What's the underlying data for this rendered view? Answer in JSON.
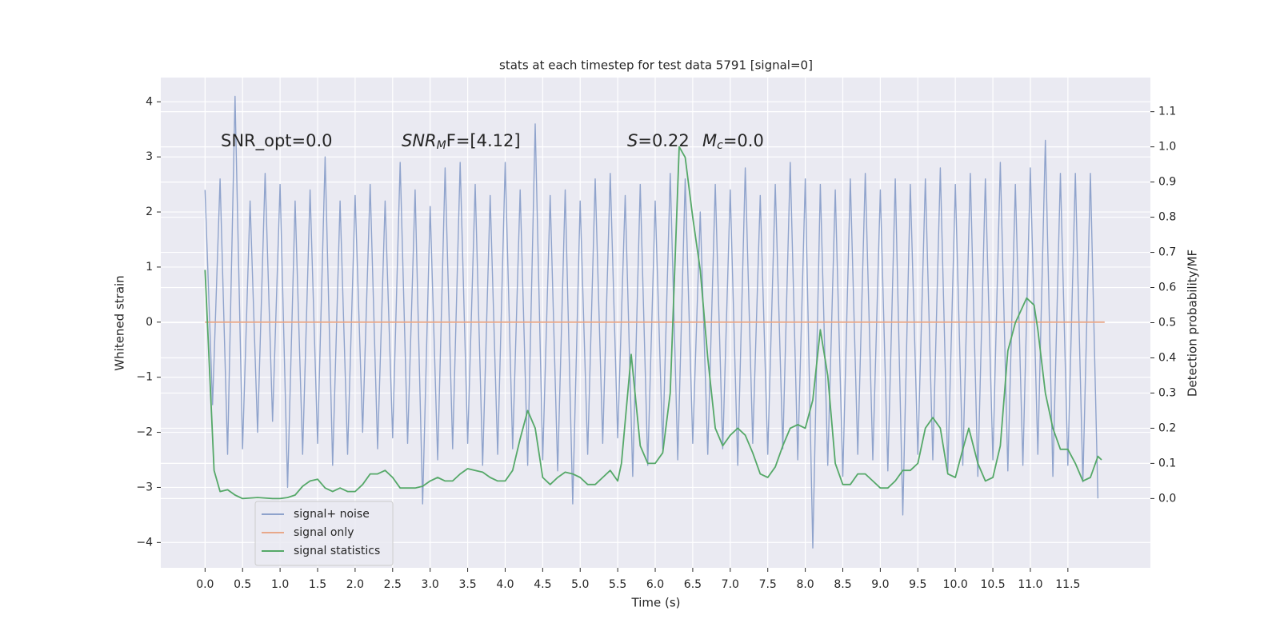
{
  "chart_data": {
    "type": "line",
    "title": "stats at each timestep for test data 5791 [signal=0]",
    "xlabel": "Time (s)",
    "ylabel": "Whitened strain",
    "y2label": "Detection probability/MF",
    "annotations": [
      {
        "text": "SNR_opt=0.0"
      },
      {
        "text": "SNR",
        "sub": "M",
        "rest": "F=[4.12]"
      },
      {
        "text": "S",
        "rest": "=0.22"
      },
      {
        "text": "M",
        "sub": "c",
        "rest": "=0.0"
      }
    ],
    "xlim": [
      -0.59,
      12.6
    ],
    "ylim": [
      -4.46,
      4.44
    ],
    "y2lim": [
      -0.197,
      1.197
    ],
    "xticks": [
      {
        "value": 0,
        "label": "0.0"
      },
      0.5,
      {
        "value": 1,
        "label": "1.0"
      },
      1.5,
      {
        "value": 2,
        "label": "2.0"
      },
      2.5,
      {
        "value": 3,
        "label": "3.0"
      },
      3.5,
      {
        "value": 4,
        "label": "4.0"
      },
      4.5,
      {
        "value": 5,
        "label": "5.0"
      },
      5.5,
      {
        "value": 6,
        "label": "6.0"
      },
      6.5,
      {
        "value": 7,
        "label": "7.0"
      },
      7.5,
      {
        "value": 8,
        "label": "8.0"
      },
      8.5,
      {
        "value": 9,
        "label": "9.0"
      },
      9.5,
      {
        "value": 10,
        "label": "10.0"
      },
      10.5,
      {
        "value": 11,
        "label": "11.0"
      },
      11.5
    ],
    "yticks": [
      {
        "value": -4,
        "label": "−4"
      },
      {
        "value": -3,
        "label": "−3"
      },
      {
        "value": -2,
        "label": "−2"
      },
      {
        "value": -1,
        "label": "−1"
      },
      0,
      1,
      2,
      3,
      4
    ],
    "y2ticks": [
      {
        "value": 0,
        "label": "0.0"
      },
      0.1,
      0.2,
      0.3,
      0.4,
      0.5,
      0.6,
      0.7,
      0.8,
      0.9,
      {
        "value": 1,
        "label": "1.0"
      },
      1.1
    ],
    "grid": true,
    "legend_loc": "lower left",
    "series": [
      {
        "name": "signal+ noise",
        "color": "#8fa3cc",
        "x": [
          0,
          0.1,
          0.2,
          0.3,
          0.4,
          0.5,
          0.6,
          0.7,
          0.8,
          0.9,
          1,
          1.1,
          1.2,
          1.3,
          1.4,
          1.5,
          1.6,
          1.7,
          1.8,
          1.9,
          2,
          2.1,
          2.2,
          2.3,
          2.4,
          2.5,
          2.6,
          2.7,
          2.8,
          2.9,
          3,
          3.1,
          3.2,
          3.3,
          3.4,
          3.5,
          3.6,
          3.7,
          3.8,
          3.9,
          4,
          4.1,
          4.2,
          4.3,
          4.4,
          4.5,
          4.6,
          4.7,
          4.8,
          4.9,
          5,
          5.1,
          5.2,
          5.3,
          5.4,
          5.5,
          5.6,
          5.7,
          5.8,
          5.9,
          6,
          6.1,
          6.2,
          6.3,
          6.4,
          6.5,
          6.6,
          6.7,
          6.8,
          6.9,
          7,
          7.1,
          7.2,
          7.3,
          7.4,
          7.5,
          7.6,
          7.7,
          7.8,
          7.9,
          8,
          8.1,
          8.2,
          8.3,
          8.4,
          8.5,
          8.6,
          8.7,
          8.8,
          8.9,
          9,
          9.1,
          9.2,
          9.3,
          9.4,
          9.5,
          9.6,
          9.7,
          9.8,
          9.9,
          10,
          10.1,
          10.2,
          10.3,
          10.4,
          10.5,
          10.6,
          10.7,
          10.8,
          10.9,
          11,
          11.1,
          11.2,
          11.3,
          11.4,
          11.5,
          11.6,
          11.7,
          11.8,
          11.9
        ],
        "values": [
          2.4,
          -1.5,
          2.6,
          -2.4,
          4.1,
          -2.3,
          2.2,
          -2.0,
          2.7,
          -1.8,
          2.5,
          -3.0,
          2.2,
          -2.4,
          2.4,
          -2.2,
          3.0,
          -2.6,
          2.2,
          -2.4,
          2.3,
          -2.0,
          2.5,
          -2.3,
          2.2,
          -2.1,
          2.9,
          -2.2,
          2.4,
          -3.3,
          2.1,
          -2.5,
          2.8,
          -2.3,
          2.9,
          -2.2,
          2.5,
          -2.6,
          2.3,
          -2.4,
          2.9,
          -2.3,
          2.4,
          -2.6,
          3.6,
          -2.5,
          2.3,
          -2.7,
          2.4,
          -3.3,
          2.2,
          -2.4,
          2.6,
          -2.2,
          2.7,
          -2.1,
          2.3,
          -2.8,
          2.5,
          -2.6,
          2.2,
          -2.3,
          2.7,
          -2.5,
          2.6,
          -2.2,
          2.0,
          -2.4,
          2.5,
          -2.3,
          2.4,
          -2.6,
          2.8,
          -2.2,
          2.3,
          -2.4,
          2.5,
          -2.3,
          2.9,
          -2.5,
          2.6,
          -4.1,
          2.5,
          -2.6,
          2.4,
          -2.8,
          2.6,
          -2.4,
          2.7,
          -2.5,
          2.4,
          -2.7,
          2.6,
          -3.5,
          2.5,
          -2.4,
          2.6,
          -2.5,
          2.8,
          -2.7,
          2.5,
          -2.6,
          2.7,
          -2.8,
          2.6,
          -2.5,
          2.9,
          -2.7,
          2.5,
          -2.6,
          2.8,
          -2.4,
          3.3,
          -2.8,
          2.7,
          -2.6,
          2.7,
          -2.9,
          2.7,
          -3.2
        ]
      },
      {
        "name": "signal only",
        "color": "#e8a88a",
        "x": [
          0,
          11.99
        ],
        "values": [
          0,
          0
        ]
      },
      {
        "name": "signal statistics",
        "color": "#55a868",
        "axis": "y2",
        "x": [
          0,
          0.12,
          0.2,
          0.3,
          0.4,
          0.5,
          0.7,
          0.9,
          1,
          1.1,
          1.2,
          1.3,
          1.4,
          1.5,
          1.6,
          1.7,
          1.8,
          1.9,
          2,
          2.1,
          2.2,
          2.3,
          2.4,
          2.5,
          2.6,
          2.8,
          2.9,
          3,
          3.1,
          3.2,
          3.3,
          3.4,
          3.5,
          3.6,
          3.7,
          3.8,
          3.9,
          4,
          4.1,
          4.2,
          4.3,
          4.4,
          4.5,
          4.6,
          4.7,
          4.8,
          4.9,
          5,
          5.1,
          5.2,
          5.3,
          5.4,
          5.5,
          5.55,
          5.68,
          5.8,
          5.9,
          6,
          6.1,
          6.2,
          6.32,
          6.4,
          6.5,
          6.6,
          6.7,
          6.8,
          6.9,
          7,
          7.1,
          7.2,
          7.3,
          7.4,
          7.5,
          7.6,
          7.7,
          7.8,
          7.9,
          8,
          8.1,
          8.2,
          8.3,
          8.4,
          8.5,
          8.6,
          8.7,
          8.8,
          8.9,
          9,
          9.1,
          9.2,
          9.3,
          9.4,
          9.5,
          9.6,
          9.7,
          9.8,
          9.9,
          10,
          10.1,
          10.18,
          10.3,
          10.4,
          10.5,
          10.6,
          10.7,
          10.8,
          10.95,
          11.05,
          11.1,
          11.2,
          11.3,
          11.4,
          11.5,
          11.6,
          11.7,
          11.8,
          11.9,
          11.95
        ],
        "values": [
          0.65,
          0.08,
          0.02,
          0.025,
          0.01,
          0,
          0.003,
          0,
          0,
          0.003,
          0.01,
          0.035,
          0.05,
          0.055,
          0.03,
          0.02,
          0.03,
          0.02,
          0.02,
          0.04,
          0.07,
          0.07,
          0.08,
          0.06,
          0.03,
          0.03,
          0.035,
          0.05,
          0.06,
          0.05,
          0.05,
          0.07,
          0.085,
          0.08,
          0.075,
          0.06,
          0.05,
          0.05,
          0.08,
          0.17,
          0.25,
          0.2,
          0.06,
          0.04,
          0.06,
          0.075,
          0.07,
          0.06,
          0.04,
          0.04,
          0.06,
          0.08,
          0.05,
          0.1,
          0.41,
          0.15,
          0.1,
          0.1,
          0.13,
          0.3,
          1.0,
          0.97,
          0.8,
          0.65,
          0.4,
          0.2,
          0.15,
          0.18,
          0.2,
          0.18,
          0.13,
          0.07,
          0.06,
          0.09,
          0.15,
          0.2,
          0.21,
          0.2,
          0.28,
          0.48,
          0.35,
          0.1,
          0.04,
          0.04,
          0.07,
          0.07,
          0.05,
          0.03,
          0.03,
          0.05,
          0.08,
          0.08,
          0.1,
          0.2,
          0.23,
          0.2,
          0.07,
          0.06,
          0.14,
          0.2,
          0.1,
          0.05,
          0.06,
          0.15,
          0.42,
          0.5,
          0.57,
          0.55,
          0.48,
          0.3,
          0.2,
          0.14,
          0.14,
          0.1,
          0.05,
          0.06,
          0.12,
          0.11
        ]
      }
    ]
  }
}
